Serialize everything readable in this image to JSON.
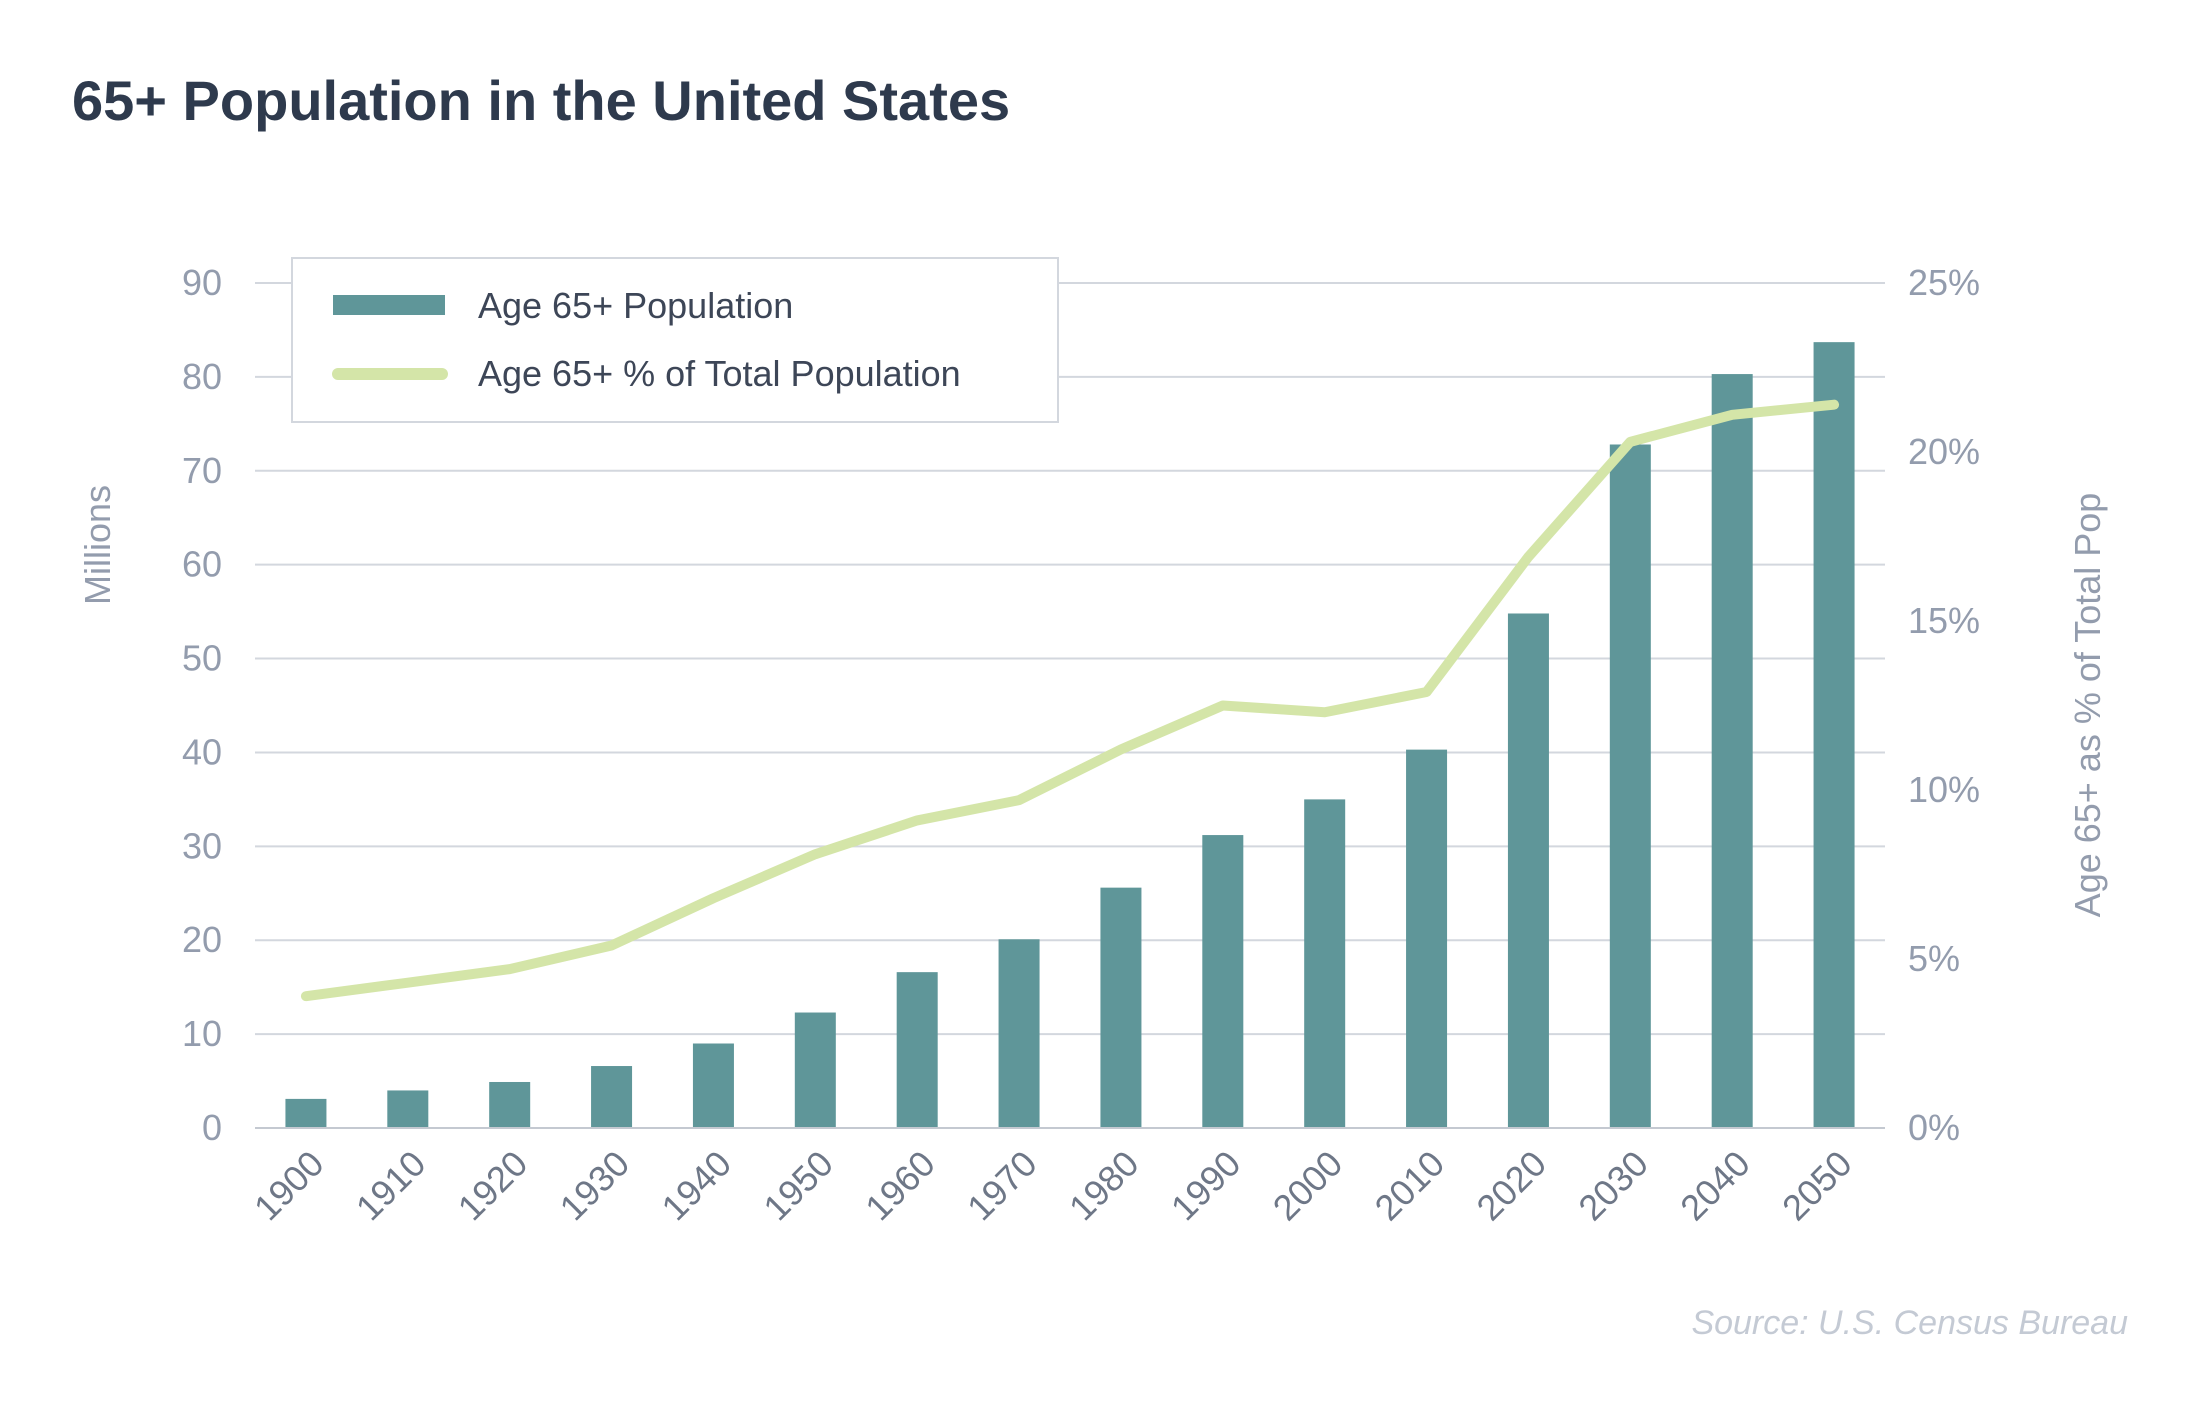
{
  "chart_data": {
    "type": "bar",
    "title": "65+ Population in the United States",
    "source": "Source: U.S. Census Bureau",
    "categories": [
      "1900",
      "1910",
      "1920",
      "1930",
      "1940",
      "1950",
      "1960",
      "1970",
      "1980",
      "1990",
      "2000",
      "2010",
      "2020",
      "2030",
      "2040",
      "2050"
    ],
    "series": [
      {
        "name": "Age 65+ Population",
        "type": "bar",
        "axis": "left",
        "color": "#5f9699",
        "values": [
          3.1,
          4.0,
          4.9,
          6.6,
          9.0,
          12.3,
          16.6,
          20.1,
          25.6,
          31.2,
          35.0,
          40.3,
          54.8,
          72.8,
          80.3,
          83.7
        ]
      },
      {
        "name": "Age 65+ % of Total Population",
        "type": "line",
        "axis": "right",
        "color": "#d4e5a8",
        "values": [
          3.9,
          4.3,
          4.7,
          5.4,
          6.8,
          8.1,
          9.1,
          9.7,
          11.2,
          12.5,
          12.3,
          12.9,
          16.9,
          20.3,
          21.1,
          21.4
        ]
      }
    ],
    "left_axis": {
      "label": "Millions",
      "ticks": [
        "0",
        "10",
        "20",
        "30",
        "40",
        "50",
        "60",
        "70",
        "80",
        "90"
      ]
    },
    "right_axis": {
      "label": "Age 65+ as  % of Total Pop",
      "ticks": [
        "0%",
        "5%",
        "10%",
        "15%",
        "20%",
        "25%"
      ]
    },
    "ylim": [
      0,
      90
    ],
    "y2lim": [
      0,
      25
    ],
    "grid": true,
    "legend_position": "top-left"
  }
}
